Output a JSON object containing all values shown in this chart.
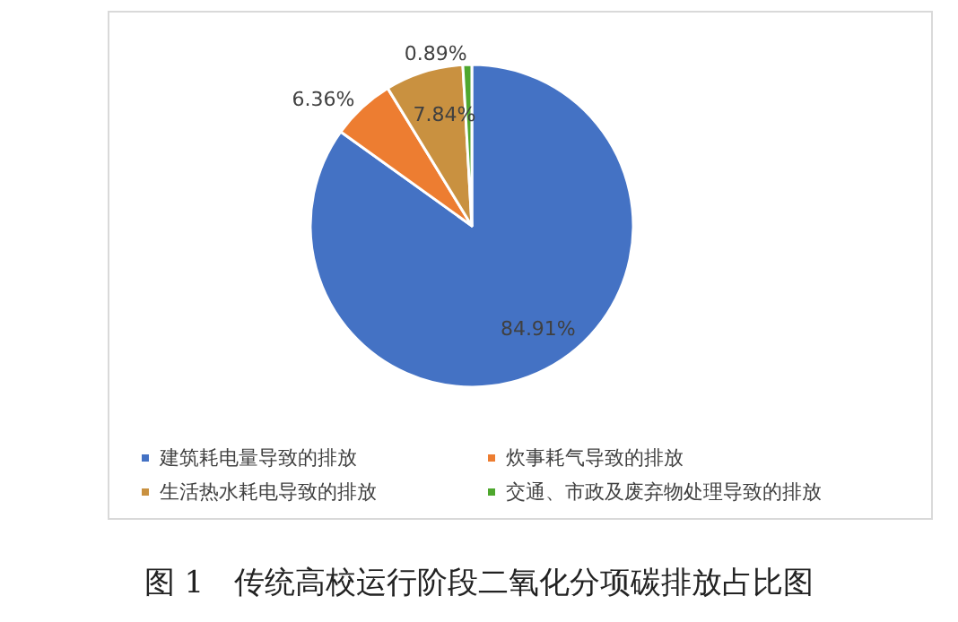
{
  "chart_data": {
    "type": "pie",
    "title": "图 1　传统高校运行阶段二氧化分项碳排放占比图",
    "categories": [
      "建筑耗电量导致的排放",
      "炊事耗气导致的排放",
      "生活热水耗电导致的排放",
      "交通、市政及废弃物处理导致的排放"
    ],
    "values": [
      84.91,
      6.36,
      7.84,
      0.89
    ],
    "value_labels": [
      "84.91%",
      "6.36%",
      "7.84%",
      "0.89%"
    ],
    "colors": [
      "#4472c4",
      "#ed7d31",
      "#c99140",
      "#4ea72e"
    ],
    "legend": "bottom"
  }
}
